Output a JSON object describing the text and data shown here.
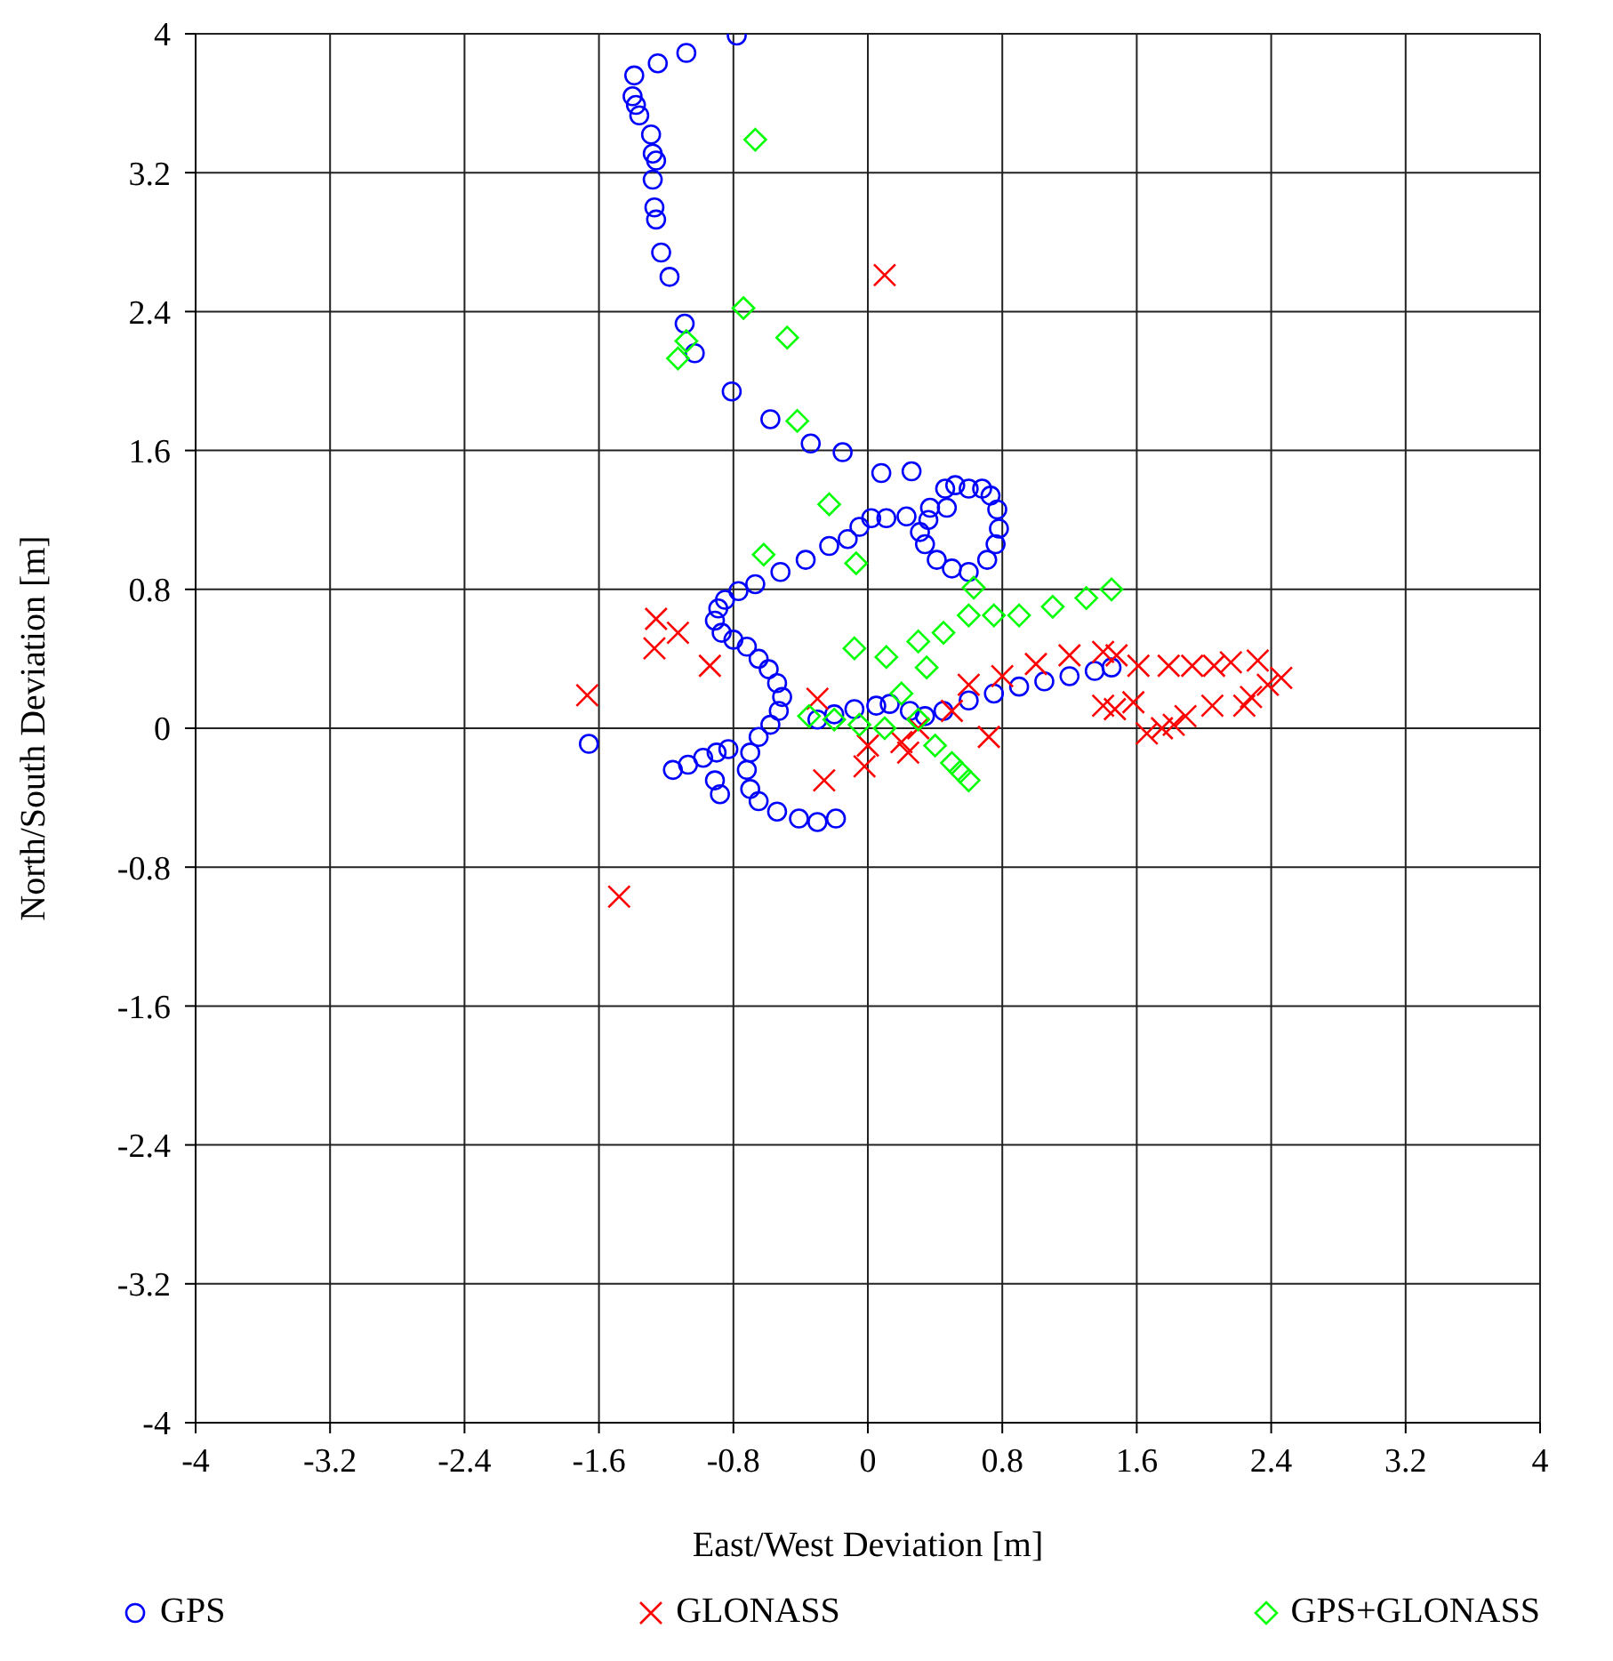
{
  "chart_data": {
    "type": "scatter",
    "xlabel": "East/West Deviation [m]",
    "ylabel": "North/South Deviation [m]",
    "xlim": [
      -4,
      4
    ],
    "ylim": [
      -4,
      4
    ],
    "xticks": [
      -4,
      -3.2,
      -2.4,
      -1.6,
      -0.8,
      0,
      0.8,
      1.6,
      2.4,
      3.2,
      4
    ],
    "yticks": [
      -4,
      -3.2,
      -2.4,
      -1.6,
      -0.8,
      0,
      0.8,
      1.6,
      2.4,
      3.2,
      4
    ],
    "grid": true,
    "legend": "bottom",
    "series": [
      {
        "name": "GPS",
        "color": "#0000ff",
        "marker": "circle",
        "x": [
          -0.78,
          -1.08,
          -1.25,
          -1.39,
          -1.4,
          -1.38,
          -1.36,
          -1.29,
          -1.28,
          -1.26,
          -1.28,
          -1.27,
          -1.26,
          -1.23,
          -1.18,
          -1.09,
          -1.03,
          -0.81,
          -0.58,
          -0.34,
          -0.15,
          0.08,
          0.26,
          0.46,
          0.52,
          0.6,
          0.68,
          0.73,
          0.77,
          0.78,
          0.76,
          0.71,
          0.6,
          0.5,
          0.41,
          0.34,
          0.31,
          0.36,
          0.47,
          0.37,
          0.23,
          0.11,
          0.02,
          -0.05,
          -0.12,
          -0.23,
          -0.37,
          -0.52,
          -0.67,
          -0.77,
          -0.85,
          -0.89,
          -0.91,
          -0.87,
          -0.8,
          -0.72,
          -0.65,
          -0.59,
          -0.54,
          -0.51,
          -0.53,
          -0.58,
          -0.65,
          -0.7,
          -0.72,
          -0.7,
          -0.65,
          -0.54,
          -0.41,
          -0.3,
          -0.19,
          -1.66,
          -1.16,
          -1.07,
          -0.98,
          -0.9,
          -0.83,
          -0.91,
          -0.88,
          -0.3,
          -0.2,
          -0.08,
          0.05,
          0.13,
          0.25,
          0.34,
          0.45,
          0.6,
          0.75,
          0.9,
          1.05,
          1.2,
          1.35,
          1.45
        ],
        "values": [
          3.99,
          3.89,
          3.83,
          3.76,
          3.64,
          3.59,
          3.53,
          3.42,
          3.31,
          3.27,
          3.16,
          3.0,
          2.93,
          2.74,
          2.6,
          2.33,
          2.16,
          1.94,
          1.78,
          1.64,
          1.59,
          1.47,
          1.48,
          1.38,
          1.4,
          1.38,
          1.38,
          1.34,
          1.26,
          1.15,
          1.06,
          0.97,
          0.9,
          0.92,
          0.97,
          1.06,
          1.13,
          1.2,
          1.27,
          1.27,
          1.22,
          1.21,
          1.21,
          1.16,
          1.09,
          1.05,
          0.97,
          0.9,
          0.83,
          0.79,
          0.74,
          0.69,
          0.62,
          0.55,
          0.51,
          0.47,
          0.4,
          0.34,
          0.26,
          0.18,
          0.1,
          0.02,
          -0.05,
          -0.14,
          -0.24,
          -0.35,
          -0.42,
          -0.48,
          -0.52,
          -0.54,
          -0.52,
          -0.09,
          -0.24,
          -0.21,
          -0.17,
          -0.14,
          -0.12,
          -0.3,
          -0.38,
          0.05,
          0.08,
          0.11,
          0.13,
          0.14,
          0.1,
          0.07,
          0.1,
          0.16,
          0.2,
          0.24,
          0.27,
          0.3,
          0.33,
          0.35
        ]
      },
      {
        "name": "GLONASS",
        "color": "#ff0000",
        "marker": "cross",
        "x": [
          -1.67,
          -1.26,
          -1.27,
          -1.13,
          -0.94,
          -1.48,
          0.1,
          -0.3,
          -0.26,
          -0.02,
          0.72,
          0.24,
          0.0,
          0.2,
          0.3,
          0.5,
          0.6,
          0.8,
          1.0,
          1.2,
          1.4,
          1.48,
          1.61,
          1.79,
          1.93,
          2.06,
          2.16,
          2.32,
          2.46,
          2.38,
          2.28,
          2.24,
          2.05,
          1.89,
          1.82,
          1.75,
          1.66,
          1.58,
          1.4,
          1.47
        ],
        "values": [
          0.19,
          0.63,
          0.46,
          0.55,
          0.36,
          -0.97,
          2.61,
          0.17,
          -0.3,
          -0.22,
          -0.05,
          -0.14,
          -0.1,
          -0.08,
          0.0,
          0.1,
          0.25,
          0.3,
          0.37,
          0.42,
          0.44,
          0.42,
          0.36,
          0.36,
          0.36,
          0.36,
          0.38,
          0.39,
          0.29,
          0.25,
          0.18,
          0.13,
          0.13,
          0.07,
          0.02,
          0.0,
          -0.03,
          0.15,
          0.13,
          0.11
        ]
      },
      {
        "name": "GPS+GLONASS",
        "color": "#00ff00",
        "marker": "diamond",
        "x": [
          -0.67,
          -0.74,
          -0.48,
          -1.08,
          -1.13,
          -0.42,
          -0.23,
          -0.62,
          -0.07,
          -0.08,
          0.11,
          0.63,
          -0.35,
          -0.2,
          -0.05,
          0.1,
          0.2,
          0.3,
          0.4,
          0.5,
          0.6,
          0.3,
          0.45,
          0.6,
          0.75,
          0.9,
          1.1,
          1.3,
          1.45,
          0.55,
          0.35
        ],
        "values": [
          3.39,
          2.42,
          2.25,
          2.23,
          2.13,
          1.77,
          1.29,
          1.0,
          0.95,
          0.46,
          0.41,
          0.81,
          0.07,
          0.05,
          0.02,
          0.0,
          0.2,
          0.05,
          -0.1,
          -0.2,
          -0.3,
          0.5,
          0.55,
          0.65,
          0.65,
          0.65,
          0.7,
          0.75,
          0.8,
          -0.25,
          0.35
        ]
      }
    ]
  }
}
